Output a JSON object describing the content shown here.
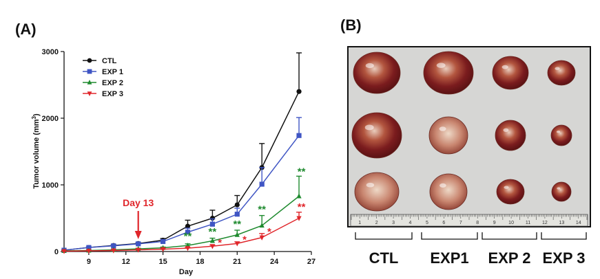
{
  "panels": {
    "a_label": "(A)",
    "b_label": "(B)"
  },
  "chart_data": {
    "type": "line",
    "xlabel": "Day",
    "ylabel": "Tumor volume (mm3)",
    "ylabel_main": "Tumor volume (mm",
    "ylabel_sup": "3",
    "ylabel_close": ")",
    "xlim": [
      7,
      27
    ],
    "ylim": [
      0,
      3000
    ],
    "xticks": [
      9,
      12,
      15,
      18,
      21,
      24,
      27
    ],
    "yticks": [
      0,
      1000,
      2000,
      3000
    ],
    "legend_position": "top-left",
    "annotation": {
      "text": "Day 13",
      "x": 13,
      "color": "#e0262b"
    },
    "series": [
      {
        "name": "CTL",
        "color": "#111111",
        "marker": "circle",
        "x": [
          7,
          9,
          11,
          13,
          15,
          17,
          19,
          21,
          23,
          26
        ],
        "y": [
          20,
          60,
          90,
          120,
          170,
          380,
          500,
          700,
          1260,
          2400
        ],
        "err": [
          5,
          10,
          12,
          15,
          25,
          90,
          120,
          140,
          360,
          580
        ]
      },
      {
        "name": "EXP 1",
        "color": "#3f55c4",
        "marker": "square",
        "x": [
          7,
          9,
          11,
          13,
          15,
          17,
          19,
          21,
          23,
          26
        ],
        "y": [
          20,
          60,
          85,
          115,
          150,
          290,
          410,
          560,
          1010,
          1740
        ],
        "err": [
          5,
          10,
          12,
          15,
          25,
          60,
          80,
          90,
          250,
          270
        ]
      },
      {
        "name": "EXP 2",
        "color": "#1e8a2e",
        "marker": "triangle-up",
        "x": [
          7,
          9,
          11,
          13,
          15,
          17,
          19,
          21,
          23,
          26
        ],
        "y": [
          10,
          15,
          25,
          40,
          55,
          90,
          160,
          250,
          390,
          830
        ],
        "err": [
          3,
          5,
          6,
          8,
          12,
          25,
          40,
          70,
          150,
          300
        ]
      },
      {
        "name": "EXP 3",
        "color": "#e0262b",
        "marker": "triangle-down",
        "x": [
          7,
          9,
          11,
          13,
          15,
          17,
          19,
          21,
          23,
          26
        ],
        "y": [
          5,
          10,
          15,
          25,
          35,
          50,
          80,
          120,
          210,
          500
        ],
        "err": [
          2,
          3,
          4,
          5,
          8,
          12,
          18,
          25,
          60,
          90
        ]
      }
    ],
    "significance": [
      {
        "text": "**",
        "x": 17,
        "y": 180,
        "color": "#1e8a2e"
      },
      {
        "text": "**",
        "x": 19,
        "y": 250,
        "color": "#1e8a2e"
      },
      {
        "text": "*",
        "x": 19.6,
        "y": 80,
        "color": "#e0262b"
      },
      {
        "text": "**",
        "x": 21,
        "y": 360,
        "color": "#1e8a2e"
      },
      {
        "text": "*",
        "x": 21.6,
        "y": 130,
        "color": "#e0262b"
      },
      {
        "text": "**",
        "x": 23,
        "y": 580,
        "color": "#1e8a2e"
      },
      {
        "text": "*",
        "x": 23.6,
        "y": 250,
        "color": "#e0262b"
      },
      {
        "text": "**",
        "x": 26.2,
        "y": 1150,
        "color": "#1e8a2e"
      },
      {
        "text": "**",
        "x": 26.2,
        "y": 620,
        "color": "#e0262b"
      }
    ]
  },
  "photo": {
    "group_labels": [
      "CTL",
      "EXP1",
      "EXP 2",
      "EXP 3"
    ],
    "ruler_numbers": [
      "1",
      "2",
      "3",
      "4",
      "5",
      "6",
      "7",
      "8",
      "9",
      "10",
      "11",
      "12",
      "13",
      "14"
    ]
  }
}
